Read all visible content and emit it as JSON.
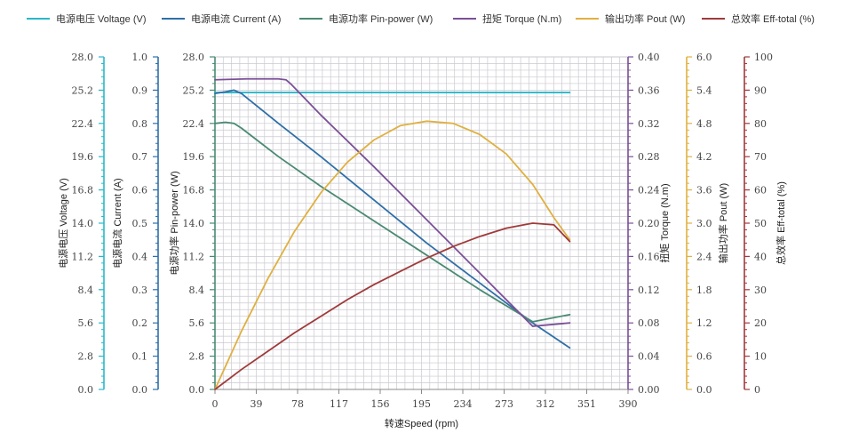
{
  "chart_data": {
    "type": "line",
    "grid": true,
    "legend_position": "top",
    "x_axis": {
      "label": "转速Speed (rpm)",
      "min": 0,
      "max": 390,
      "ticks": [
        "0",
        "39",
        "78",
        "117",
        "156",
        "195",
        "234",
        "273",
        "312",
        "351",
        "390"
      ]
    },
    "axes": [
      {
        "id": "voltage",
        "label": "电源电压 Voltage (V)",
        "color": "#2ab7c9",
        "side": "left",
        "min": 0,
        "max": 28,
        "ticks": [
          "0.0",
          "2.8",
          "5.6",
          "8.4",
          "11.2",
          "14.0",
          "16.8",
          "19.6",
          "22.4",
          "25.2",
          "28.0"
        ]
      },
      {
        "id": "current",
        "label": "电源电流 Current (A)",
        "color": "#2f6fa8",
        "side": "left",
        "min": 0,
        "max": 1,
        "ticks": [
          "0.0",
          "0.1",
          "0.2",
          "0.3",
          "0.4",
          "0.5",
          "0.6",
          "0.7",
          "0.8",
          "0.9",
          "1.0"
        ]
      },
      {
        "id": "pin",
        "label": "电源功率 Pin-power (W)",
        "color": "#4a8a72",
        "side": "left",
        "min": 0,
        "max": 28,
        "ticks": [
          "0.0",
          "2.8",
          "5.6",
          "8.4",
          "11.2",
          "14.0",
          "16.8",
          "19.6",
          "22.4",
          "25.2",
          "28.0"
        ]
      },
      {
        "id": "torque",
        "label": "扭矩 Torque (N.m)",
        "color": "#7b4f98",
        "side": "right",
        "min": 0,
        "max": 0.4,
        "ticks": [
          "0.00",
          "0.04",
          "0.08",
          "0.12",
          "0.16",
          "0.20",
          "0.24",
          "0.28",
          "0.32",
          "0.36",
          "0.40"
        ]
      },
      {
        "id": "pout",
        "label": "输出功率 Pout (W)",
        "color": "#e0b040",
        "side": "right",
        "min": 0,
        "max": 6,
        "ticks": [
          "0.0",
          "0.6",
          "1.2",
          "1.8",
          "2.4",
          "3.0",
          "3.6",
          "4.2",
          "4.8",
          "5.4",
          "6.0"
        ]
      },
      {
        "id": "eff",
        "label": "总效率 Eff-total (%)",
        "color": "#a03a3a",
        "side": "right",
        "min": 0,
        "max": 100,
        "ticks": [
          "0",
          "10",
          "20",
          "30",
          "40",
          "50",
          "60",
          "70",
          "80",
          "90",
          "100"
        ]
      }
    ],
    "series": [
      {
        "name": "电源电压 Voltage (V)",
        "axis": "voltage",
        "color": "#2ab7c9",
        "x": [
          0,
          20,
          100,
          200,
          335
        ],
        "y": [
          25.0,
          25.0,
          25.0,
          25.0,
          25.0
        ]
      },
      {
        "name": "电源电流 Current (A)",
        "axis": "current",
        "color": "#2f6fa8",
        "x": [
          0,
          10,
          18,
          25,
          60,
          100,
          150,
          200,
          250,
          300,
          335
        ],
        "y": [
          0.89,
          0.895,
          0.9,
          0.89,
          0.8,
          0.7,
          0.57,
          0.44,
          0.32,
          0.2,
          0.125
        ]
      },
      {
        "name": "电源功率 Pin-power (W)",
        "axis": "pin",
        "color": "#4a8a72",
        "x": [
          0,
          10,
          18,
          25,
          60,
          100,
          150,
          200,
          250,
          300,
          335
        ],
        "y": [
          22.4,
          22.5,
          22.4,
          22.0,
          19.6,
          17.1,
          14.2,
          11.3,
          8.4,
          5.7,
          6.3
        ]
      },
      {
        "name": "扭矩 Torque (N.m)",
        "axis": "torque",
        "color": "#7b4f98",
        "x": [
          0,
          30,
          60,
          67,
          72,
          100,
          150,
          200,
          250,
          300,
          335
        ],
        "y": [
          0.3725,
          0.3735,
          0.3735,
          0.3725,
          0.367,
          0.33,
          0.268,
          0.204,
          0.14,
          0.076,
          0.08
        ]
      },
      {
        "name": "输出功率 Pout (W)",
        "axis": "pout",
        "color": "#e0b040",
        "x": [
          0,
          25,
          50,
          75,
          100,
          125,
          150,
          175,
          200,
          225,
          250,
          275,
          300,
          320,
          335
        ],
        "y": [
          0,
          1.05,
          2.0,
          2.85,
          3.55,
          4.1,
          4.5,
          4.76,
          4.84,
          4.8,
          4.6,
          4.25,
          3.7,
          3.1,
          2.7
        ]
      },
      {
        "name": "总效率 Eff-total (%)",
        "axis": "eff",
        "color": "#a03a3a",
        "x": [
          0,
          25,
          50,
          75,
          100,
          125,
          150,
          175,
          200,
          225,
          250,
          275,
          300,
          320,
          335
        ],
        "y": [
          0,
          6,
          11.5,
          17,
          22,
          27,
          31.5,
          35.5,
          39.5,
          43,
          46,
          48.5,
          50,
          49.5,
          44.5
        ]
      }
    ]
  }
}
